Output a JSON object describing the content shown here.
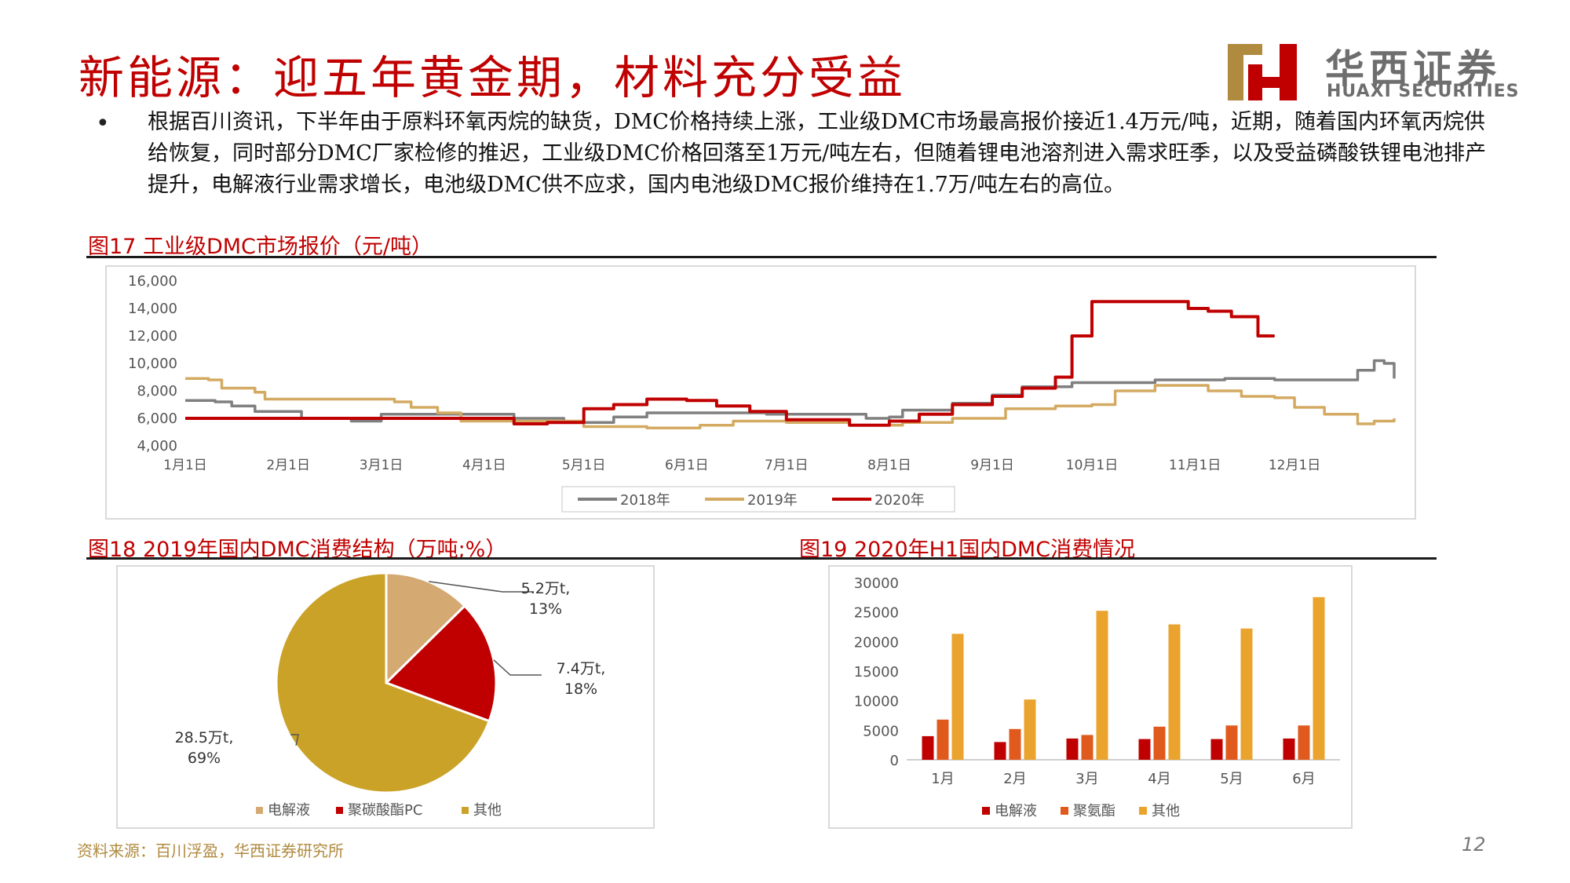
{
  "header": {
    "title": "新能源：迎五年黄金期，材料充分受益",
    "logo_cn": "华西证券",
    "logo_en": "HUAXI SECURITIES"
  },
  "bullet": {
    "text": "根据百川资讯，下半年由于原料环氧丙烷的缺货，DMC价格持续上涨，工业级DMC市场最高报价接近1.4万元/吨，近期，随着国内环氧丙烷供给恢复，同时部分DMC厂家检修的推迟，工业级DMC价格回落至1万元/吨左右，但随着锂电池溶剂进入需求旺季，以及受益磷酸铁锂电池排产提升，电解液行业需求增长，电池级DMC供不应求，国内电池级DMC报价维持在1.7万/吨左右的高位。"
  },
  "captions": {
    "fig17": "图17  工业级DMC市场报价（元/吨）",
    "fig18": "图18  2019年国内DMC消费结构（万吨;%）",
    "fig19": "图19 2020年H1国内DMC消费情况"
  },
  "footer": {
    "source": "资料来源：百川浮盈，华西证券研究所",
    "page": "12"
  },
  "colors": {
    "brand_red": "#c00000",
    "s2018": "#7f7f7f",
    "s2019": "#d4aa62",
    "s2020": "#c00000",
    "pie_dianjieye": "#d4aa72",
    "pie_pc": "#c00000",
    "pie_other": "#c9a227",
    "bar_dianjieye": "#c00000",
    "bar_jujuzhi": "#e05a1e",
    "bar_other": "#eaa32d"
  },
  "chart_data": [
    {
      "type": "line",
      "title": "",
      "x_ticks": [
        "1月1日",
        "2月1日",
        "3月1日",
        "4月1日",
        "5月1日",
        "6月1日",
        "7月1日",
        "8月1日",
        "9月1日",
        "10月1日",
        "11月1日",
        "12月1日"
      ],
      "ylim": [
        4000,
        16000
      ],
      "y_ticks": [
        "4,000",
        "6,000",
        "8,000",
        "10,000",
        "12,000",
        "14,000",
        "16,000"
      ],
      "legend_position": "bottom",
      "grid": false,
      "series": [
        {
          "name": "2018年",
          "color_key": "s2018",
          "points": [
            [
              "01-01",
              7300
            ],
            [
              "01-10",
              7200
            ],
            [
              "01-15",
              6900
            ],
            [
              "01-22",
              6500
            ],
            [
              "02-05",
              6000
            ],
            [
              "02-20",
              5800
            ],
            [
              "03-01",
              6300
            ],
            [
              "03-25",
              6300
            ],
            [
              "04-10",
              6000
            ],
            [
              "04-25",
              5700
            ],
            [
              "05-10",
              6100
            ],
            [
              "05-20",
              6400
            ],
            [
              "06-25",
              6300
            ],
            [
              "07-25",
              6000
            ],
            [
              "08-01",
              6100
            ],
            [
              "08-05",
              6600
            ],
            [
              "08-20",
              7100
            ],
            [
              "09-01",
              7700
            ],
            [
              "09-10",
              8300
            ],
            [
              "09-25",
              8600
            ],
            [
              "10-20",
              8800
            ],
            [
              "11-10",
              8900
            ],
            [
              "11-25",
              8800
            ],
            [
              "12-10",
              8800
            ],
            [
              "12-20",
              9500
            ],
            [
              "12-25",
              10200
            ],
            [
              "12-28",
              10000
            ],
            [
              "12-31",
              8900
            ]
          ]
        },
        {
          "name": "2019年",
          "color_key": "s2019",
          "points": [
            [
              "01-01",
              8900
            ],
            [
              "01-08",
              8800
            ],
            [
              "01-12",
              8200
            ],
            [
              "01-22",
              7900
            ],
            [
              "01-25",
              7400
            ],
            [
              "03-05",
              7200
            ],
            [
              "03-10",
              6800
            ],
            [
              "03-18",
              6400
            ],
            [
              "03-25",
              5800
            ],
            [
              "04-20",
              5800
            ],
            [
              "05-01",
              5400
            ],
            [
              "05-20",
              5300
            ],
            [
              "06-05",
              5500
            ],
            [
              "06-15",
              5800
            ],
            [
              "07-01",
              5700
            ],
            [
              "07-20",
              5500
            ],
            [
              "08-05",
              5700
            ],
            [
              "08-20",
              6000
            ],
            [
              "09-05",
              6700
            ],
            [
              "09-20",
              6900
            ],
            [
              "10-01",
              7000
            ],
            [
              "10-08",
              8000
            ],
            [
              "10-20",
              8400
            ],
            [
              "11-05",
              8000
            ],
            [
              "11-15",
              7600
            ],
            [
              "11-25",
              7500
            ],
            [
              "12-01",
              6800
            ],
            [
              "12-10",
              6300
            ],
            [
              "12-20",
              5600
            ],
            [
              "12-25",
              5800
            ],
            [
              "12-31",
              6000
            ]
          ]
        },
        {
          "name": "2020年",
          "color_key": "s2020",
          "points": [
            [
              "01-01",
              6000
            ],
            [
              "03-01",
              6000
            ],
            [
              "04-10",
              5600
            ],
            [
              "04-20",
              5700
            ],
            [
              "05-01",
              6700
            ],
            [
              "05-10",
              7000
            ],
            [
              "05-20",
              7400
            ],
            [
              "06-01",
              7300
            ],
            [
              "06-10",
              6900
            ],
            [
              "06-20",
              6500
            ],
            [
              "07-01",
              5900
            ],
            [
              "07-20",
              5500
            ],
            [
              "08-01",
              5800
            ],
            [
              "08-10",
              6300
            ],
            [
              "08-20",
              7000
            ],
            [
              "09-01",
              7600
            ],
            [
              "09-10",
              8200
            ],
            [
              "09-20",
              9000
            ],
            [
              "09-25",
              12000
            ],
            [
              "10-01",
              14500
            ],
            [
              "10-25",
              14500
            ],
            [
              "10-30",
              14000
            ],
            [
              "11-05",
              13800
            ],
            [
              "11-12",
              13400
            ],
            [
              "11-20",
              12000
            ],
            [
              "11-25",
              12000
            ]
          ]
        }
      ]
    },
    {
      "type": "pie",
      "title": "",
      "slices": [
        {
          "name": "电解液",
          "value": 5.2,
          "percent": 13,
          "label_value": "5.2万t,",
          "label_pct": "13%",
          "color_key": "pie_dianjieye"
        },
        {
          "name": "聚碳酸酯PC",
          "value": 7.4,
          "percent": 18,
          "label_value": "7.4万t,",
          "label_pct": "18%",
          "color_key": "pie_pc"
        },
        {
          "name": "其他",
          "value": 28.5,
          "percent": 69,
          "label_value": "28.5万t,",
          "label_pct": "69%",
          "color_key": "pie_other"
        }
      ],
      "legend_position": "bottom"
    },
    {
      "type": "bar",
      "title": "",
      "categories": [
        "1月",
        "2月",
        "3月",
        "4月",
        "5月",
        "6月"
      ],
      "ylim": [
        0,
        30000
      ],
      "y_ticks": [
        "0",
        "5000",
        "10000",
        "15000",
        "20000",
        "25000",
        "30000"
      ],
      "legend_position": "bottom",
      "series": [
        {
          "name": "电解液",
          "color_key": "bar_dianjieye",
          "values": [
            4000,
            3000,
            3600,
            3500,
            3500,
            3600
          ]
        },
        {
          "name": "聚氨酯",
          "color_key": "bar_jujuzhi",
          "values": [
            6800,
            5200,
            4200,
            5600,
            5800,
            5800
          ]
        },
        {
          "name": "其他",
          "color_key": "bar_other",
          "values": [
            21300,
            10200,
            25200,
            22900,
            22200,
            27500
          ]
        }
      ]
    }
  ]
}
